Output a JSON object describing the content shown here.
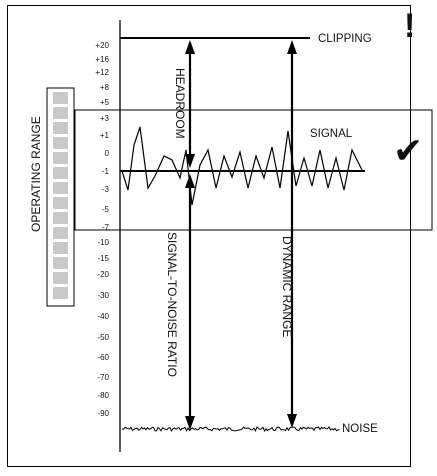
{
  "scale_ticks": [
    "+20",
    "+16",
    "+12",
    "+8",
    "+5",
    "+3",
    "+1",
    "0",
    "-1",
    "-3",
    "-5",
    "-7",
    "-10",
    "-15",
    "-20",
    "-30",
    "-40",
    "-50",
    "-60",
    "-70",
    "-80",
    "-90"
  ],
  "labels": {
    "clipping": "CLIPPING",
    "signal": "SIGNAL",
    "noise": "NOISE",
    "headroom": "HEADROOM",
    "operating_range": "OPERATING RANGE",
    "snr": "SIGNAL-TO-NOISE RATIO",
    "dynamic_range": "DYNAMIC RANGE"
  },
  "marks": {
    "warning": "!",
    "check": "✔"
  },
  "meter": {
    "segments": 14
  }
}
